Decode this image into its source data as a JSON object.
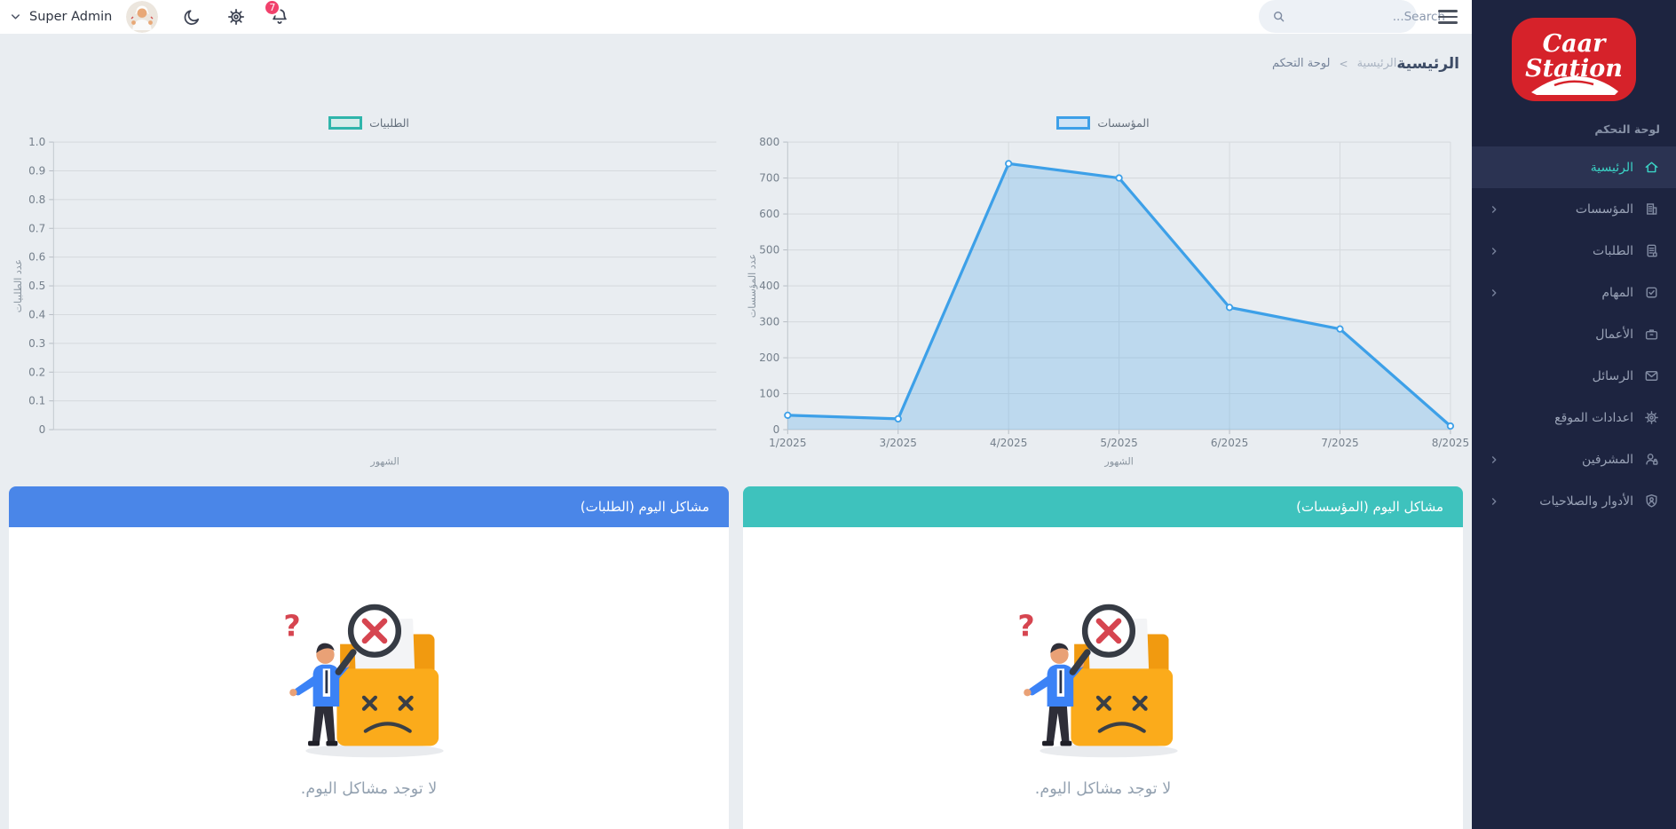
{
  "topbar": {
    "user_label": "Super Admin",
    "search_placeholder": "...Search",
    "notification_count": "7",
    "badge_color": "#f1416c",
    "icons": [
      "chevron-down",
      "avatar",
      "moon",
      "gear",
      "bell",
      "magnifier",
      "hamburger"
    ]
  },
  "breadcrumb": {
    "parent": "لوحة التحكم",
    "separator": "<",
    "current": "الرئيسية"
  },
  "page_title": "الرئيسية",
  "sidebar": {
    "bg_color": "#1d2440",
    "accent_color": "#3bd4c6",
    "brand": {
      "line1": "Caar",
      "line2": "Station",
      "bg_color": "#d6222a"
    },
    "section_label": "لوحة التحكم",
    "items": [
      {
        "id": "home",
        "label": "الرئيسية",
        "icon": "home",
        "active": true,
        "chevron": false
      },
      {
        "id": "institutions",
        "label": "المؤسسات",
        "icon": "building",
        "active": false,
        "chevron": true
      },
      {
        "id": "orders",
        "label": "الطلبات",
        "icon": "document",
        "active": false,
        "chevron": true
      },
      {
        "id": "tasks",
        "label": "المهام",
        "icon": "task",
        "active": false,
        "chevron": true
      },
      {
        "id": "works",
        "label": "الأعمال",
        "icon": "briefcase",
        "active": false,
        "chevron": false
      },
      {
        "id": "messages",
        "label": "الرسائل",
        "icon": "mail",
        "active": false,
        "chevron": false
      },
      {
        "id": "site-settings",
        "label": "اعدادات الموقع",
        "icon": "gear",
        "active": false,
        "chevron": false
      },
      {
        "id": "supervisors",
        "label": "المشرفين",
        "icon": "user-lock",
        "active": false,
        "chevron": true
      },
      {
        "id": "roles",
        "label": "الأدوار والصلاحيات",
        "icon": "shield-user",
        "active": false,
        "chevron": true
      }
    ]
  },
  "chart_data": [
    {
      "type": "line",
      "legend": "المؤسسات",
      "x_categories": [
        "1/2025",
        "3/2025",
        "4/2025",
        "5/2025",
        "6/2025",
        "7/2025",
        "8/2025"
      ],
      "values": [
        40,
        30,
        740,
        700,
        340,
        280,
        10
      ],
      "xlabel": "الشهور",
      "ylabel": "عدد المؤسسات",
      "ylim": [
        0,
        800
      ],
      "ytick_values": [
        0,
        100,
        200,
        300,
        400,
        500,
        600,
        700,
        800
      ],
      "ytick_labels": [
        "0",
        "100",
        "200",
        "300",
        "400",
        "500",
        "600",
        "700",
        "800"
      ],
      "line_color": "#3da0e8",
      "fill_color": "rgba(61,160,232,0.25)",
      "legend_fill": "#cfe3f5",
      "grid": true,
      "legend_position": "top"
    },
    {
      "type": "line",
      "legend": "الطلبيات",
      "x_categories": [],
      "values": [],
      "xlabel": "الشهور",
      "ylabel": "عدد الطلبيات",
      "ylim": [
        0,
        1
      ],
      "ytick_values": [
        0,
        0.1,
        0.2,
        0.3,
        0.4,
        0.5,
        0.6,
        0.7,
        0.8,
        0.9,
        1
      ],
      "ytick_labels": [
        "0",
        "0.1",
        "0.2",
        "0.3",
        "0.4",
        "0.5",
        "0.6",
        "0.7",
        "0.8",
        "0.9",
        "1.0"
      ],
      "line_color": "#2fb5ab",
      "fill_color": "rgba(47,181,171,0.2)",
      "legend_fill": "#d8ecea",
      "grid": true,
      "legend_position": "top"
    }
  ],
  "cards": [
    {
      "title": "مشاكل اليوم (المؤسسات)",
      "header_color": "#3ec2bd",
      "empty_text": "لا توجد مشاكل اليوم."
    },
    {
      "title": "مشاكل اليوم (الطلبات)",
      "header_color": "#4a86e8",
      "empty_text": "لا توجد مشاكل اليوم."
    }
  ]
}
